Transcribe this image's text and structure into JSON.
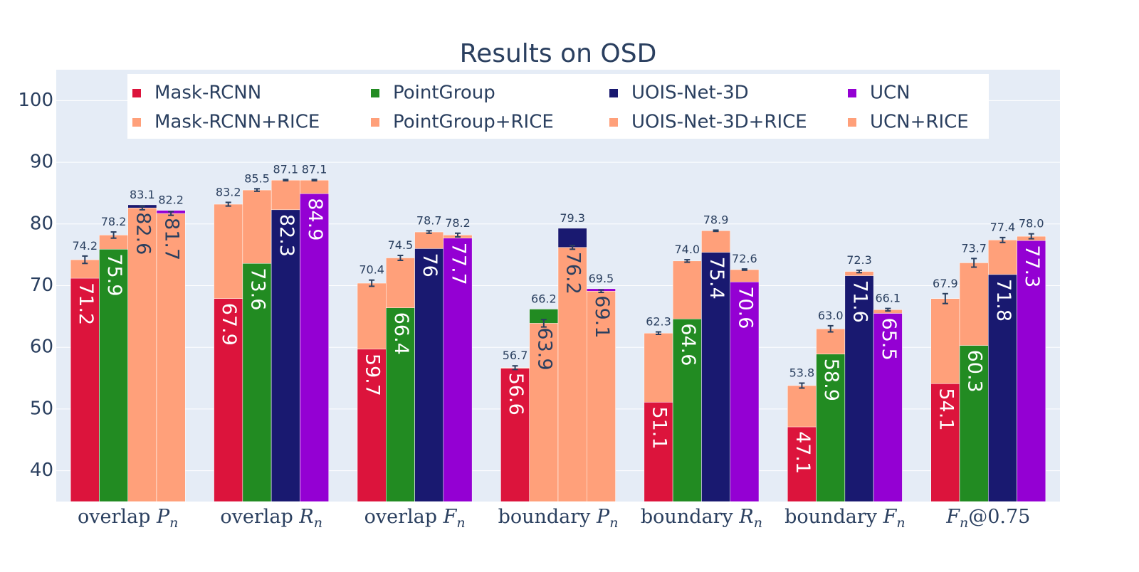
{
  "chart_data": {
    "type": "bar",
    "title": "Results on OSD",
    "categories": [
      {
        "pre": "overlap ",
        "var": "P",
        "sub": "n"
      },
      {
        "pre": "overlap ",
        "var": "R",
        "sub": "n"
      },
      {
        "pre": "overlap ",
        "var": "F",
        "sub": "n"
      },
      {
        "pre": "boundary ",
        "var": "P",
        "sub": "n"
      },
      {
        "pre": "boundary ",
        "var": "R",
        "sub": "n"
      },
      {
        "pre": "boundary ",
        "var": "F",
        "sub": "n"
      },
      {
        "var": "F",
        "sub": "n",
        "post": "@0.75"
      }
    ],
    "pairs": [
      {
        "base": {
          "name": "Mask-RCNN",
          "color": "#dc143c",
          "values": [
            71.2,
            67.9,
            59.7,
            56.6,
            51.1,
            47.1,
            54.1
          ]
        },
        "rice": {
          "name": "Mask-RCNN+RICE",
          "color": "#ffa07a",
          "values": [
            74.2,
            83.2,
            70.4,
            56.7,
            62.3,
            53.8,
            67.9
          ],
          "errors": [
            0.6,
            0.3,
            0.5,
            0.3,
            0.2,
            0.4,
            0.8
          ]
        }
      },
      {
        "base": {
          "name": "PointGroup",
          "color": "#228b22",
          "values": [
            75.9,
            73.6,
            66.4,
            66.2,
            64.6,
            58.9,
            60.3
          ]
        },
        "rice": {
          "name": "PointGroup+RICE",
          "color": "#ffa07a",
          "values": [
            78.2,
            85.5,
            74.5,
            63.9,
            74.0,
            63.0,
            73.7
          ],
          "value_labels": [
            "78.2",
            "85.5",
            "74.5",
            "63.9",
            "74.0",
            "63.0",
            "73.7"
          ],
          "errors": [
            0.5,
            0.2,
            0.4,
            0.6,
            0.2,
            0.5,
            0.7
          ]
        }
      },
      {
        "base": {
          "name": "UOIS-Net-3D",
          "color": "#191970",
          "values": [
            83.1,
            82.3,
            76.0,
            79.3,
            75.4,
            71.6,
            71.8
          ]
        },
        "rice": {
          "name": "UOIS-Net-3D+RICE",
          "color": "#ffa07a",
          "values": [
            82.6,
            87.1,
            78.7,
            76.2,
            78.9,
            72.3,
            77.4
          ],
          "errors": [
            0.3,
            0.1,
            0.2,
            0.3,
            0.1,
            0.2,
            0.4
          ]
        }
      },
      {
        "base": {
          "name": "UCN",
          "color": "#9400d3",
          "values": [
            82.2,
            84.9,
            77.7,
            69.5,
            70.6,
            65.5,
            77.3
          ]
        },
        "rice": {
          "name": "UCN+RICE",
          "color": "#ffa07a",
          "values": [
            81.7,
            87.1,
            78.2,
            69.1,
            72.6,
            66.1,
            78.0
          ],
          "value_labels": [
            "81.7",
            "87.1",
            "78.2",
            "69.1",
            "72.6",
            "66.1",
            "78.0"
          ],
          "errors": [
            0.3,
            0.1,
            0.3,
            0.2,
            0.1,
            0.2,
            0.4
          ]
        }
      }
    ],
    "ylim": [
      35,
      105
    ],
    "yticks": [
      40,
      50,
      60,
      70,
      80,
      90,
      100
    ],
    "grid": true,
    "bar_mode": "overlay"
  }
}
